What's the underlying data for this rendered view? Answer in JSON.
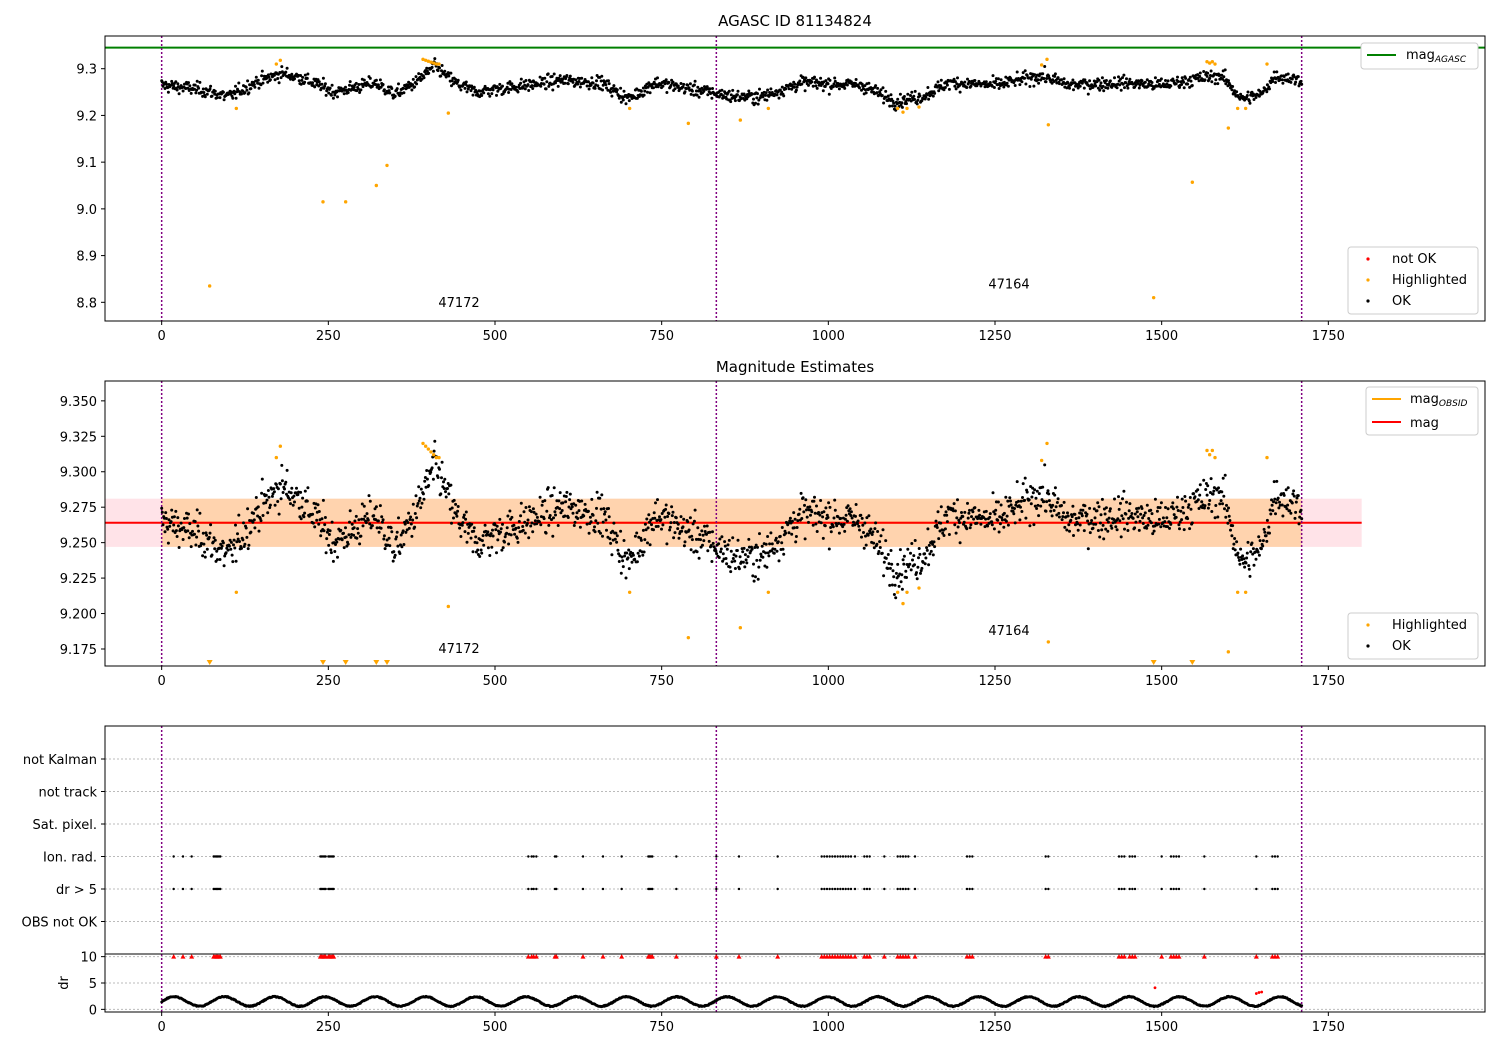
{
  "chart_data": [
    {
      "type": "scatter",
      "title": "AGASC ID 81134824",
      "xlim": [
        -85,
        1985
      ],
      "ylim": [
        8.76,
        9.37
      ],
      "x_ticks": [
        0,
        250,
        500,
        750,
        1000,
        1250,
        1500,
        1750
      ],
      "y_ticks": [
        8.8,
        8.9,
        9.0,
        9.1,
        9.2,
        9.3
      ],
      "obsid_boundaries": [
        0,
        832,
        1710
      ],
      "obsid_labels": [
        {
          "text": "47172",
          "x": 415,
          "y": 8.79
        },
        {
          "text": "47164",
          "x": 1240,
          "y": 8.83
        }
      ],
      "mag_agasc": 9.345,
      "series": [
        {
          "name": "not OK",
          "color": "#ff0000",
          "x": [],
          "y": []
        },
        {
          "name": "Highlighted",
          "color": "#ffa500",
          "x": [
            72,
            112,
            172,
            178,
            242,
            276,
            322,
            338,
            392,
            396,
            400,
            404,
            408,
            412,
            416,
            430,
            702,
            790,
            868,
            910,
            1104,
            1112,
            1118,
            1136,
            1320,
            1328,
            1330,
            1488,
            1546,
            1568,
            1572,
            1576,
            1580,
            1600,
            1614,
            1626,
            1658
          ],
          "y": [
            8.835,
            9.215,
            9.31,
            9.318,
            9.015,
            9.015,
            9.05,
            9.093,
            9.32,
            9.318,
            9.316,
            9.314,
            9.312,
            9.31,
            9.31,
            9.205,
            9.215,
            9.183,
            9.19,
            9.215,
            9.215,
            9.207,
            9.215,
            9.218,
            9.308,
            9.32,
            9.18,
            8.81,
            9.057,
            9.315,
            9.312,
            9.315,
            9.31,
            9.173,
            9.215,
            9.215,
            9.31
          ]
        },
        {
          "name": "OK",
          "color": "#000000",
          "n_points": 1700,
          "x_range": [
            0,
            1710
          ],
          "typical_mag": 9.265,
          "scatter": 0.018,
          "local_trends": [
            [
              0,
              9.265
            ],
            [
              60,
              9.255
            ],
            [
              100,
              9.24
            ],
            [
              140,
              9.27
            ],
            [
              180,
              9.29
            ],
            [
              210,
              9.28
            ],
            [
              260,
              9.25
            ],
            [
              320,
              9.27
            ],
            [
              350,
              9.245
            ],
            [
              380,
              9.27
            ],
            [
              410,
              9.305
            ],
            [
              440,
              9.27
            ],
            [
              470,
              9.25
            ],
            [
              550,
              9.265
            ],
            [
              600,
              9.275
            ],
            [
              660,
              9.27
            ],
            [
              700,
              9.235
            ],
            [
              740,
              9.27
            ],
            [
              800,
              9.255
            ],
            [
              860,
              9.24
            ],
            [
              900,
              9.24
            ],
            [
              960,
              9.27
            ],
            [
              1050,
              9.265
            ],
            [
              1100,
              9.23
            ],
            [
              1140,
              9.24
            ],
            [
              1180,
              9.27
            ],
            [
              1250,
              9.265
            ],
            [
              1320,
              9.285
            ],
            [
              1360,
              9.265
            ],
            [
              1440,
              9.27
            ],
            [
              1500,
              9.265
            ],
            [
              1560,
              9.28
            ],
            [
              1590,
              9.285
            ],
            [
              1620,
              9.235
            ],
            [
              1650,
              9.245
            ],
            [
              1670,
              9.285
            ],
            [
              1710,
              9.275
            ]
          ]
        }
      ]
    },
    {
      "type": "scatter",
      "title": "Magnitude Estimates",
      "xlim": [
        -85,
        1985
      ],
      "ylim": [
        9.163,
        9.364
      ],
      "x_ticks": [
        0,
        250,
        500,
        750,
        1000,
        1250,
        1500,
        1750
      ],
      "y_ticks": [
        9.175,
        9.2,
        9.225,
        9.25,
        9.275,
        9.3,
        9.325,
        9.35
      ],
      "obsid_boundaries": [
        0,
        832,
        1710
      ],
      "obsid_labels": [
        {
          "text": "47172",
          "x": 415,
          "y": 9.172
        },
        {
          "text": "47164",
          "x": 1240,
          "y": 9.185
        }
      ],
      "mag": 9.264,
      "mag_band": [
        9.247,
        9.281
      ],
      "mag_obsid": [
        {
          "x": [
            0,
            832
          ],
          "mag": 9.264
        },
        {
          "x": [
            832,
            1710
          ],
          "mag": 9.264
        }
      ],
      "band_x_range": [
        -85,
        1800
      ],
      "highlight_offscale_x": [
        72,
        242,
        276,
        322,
        338,
        1488,
        1546
      ]
    },
    {
      "type": "scatter",
      "title": "",
      "xlim": [
        -85,
        1985
      ],
      "x_ticks": [
        0,
        250,
        500,
        750,
        1000,
        1250,
        1500,
        1750
      ],
      "y_ticks": [
        "not Kalman",
        "not track",
        "Sat. pixel.",
        "Ion. rad.",
        "dr > 5",
        "OBS not OK"
      ],
      "obsid_boundaries": [
        0,
        832,
        1710
      ],
      "flag_x": [
        18,
        32,
        45,
        78,
        80,
        82,
        84,
        86,
        88,
        238,
        240,
        242,
        244,
        246,
        250,
        252,
        254,
        256,
        258,
        550,
        555,
        558,
        562,
        590,
        592,
        632,
        662,
        690,
        730,
        732,
        734,
        736,
        772,
        832,
        866,
        924,
        990,
        994,
        998,
        1002,
        1006,
        1010,
        1014,
        1018,
        1022,
        1026,
        1030,
        1034,
        1040,
        1054,
        1058,
        1062,
        1084,
        1104,
        1108,
        1112,
        1116,
        1120,
        1130,
        1208,
        1212,
        1216,
        1326,
        1330,
        1436,
        1440,
        1444,
        1452,
        1456,
        1460,
        1500,
        1514,
        1518,
        1522,
        1526,
        1564,
        1642,
        1666,
        1670,
        1674
      ]
    },
    {
      "type": "scatter",
      "title": "",
      "ylabel": "dr",
      "xlim": [
        -85,
        1985
      ],
      "ylim": [
        -0.5,
        10.5
      ],
      "x_ticks": [
        0,
        250,
        500,
        750,
        1000,
        1250,
        1500,
        1750
      ],
      "y_ticks": [
        0,
        5,
        10
      ],
      "obsid_boundaries": [
        0,
        832,
        1710
      ],
      "dr_typical_range": [
        0.5,
        2.5
      ],
      "dr_outliers": [
        {
          "x": 1490,
          "y": 4.1
        },
        {
          "x": 1642,
          "y": 3.0
        },
        {
          "x": 1646,
          "y": 3.2
        },
        {
          "x": 1650,
          "y": 3.3
        }
      ],
      "capped_value": 10
    }
  ]
}
